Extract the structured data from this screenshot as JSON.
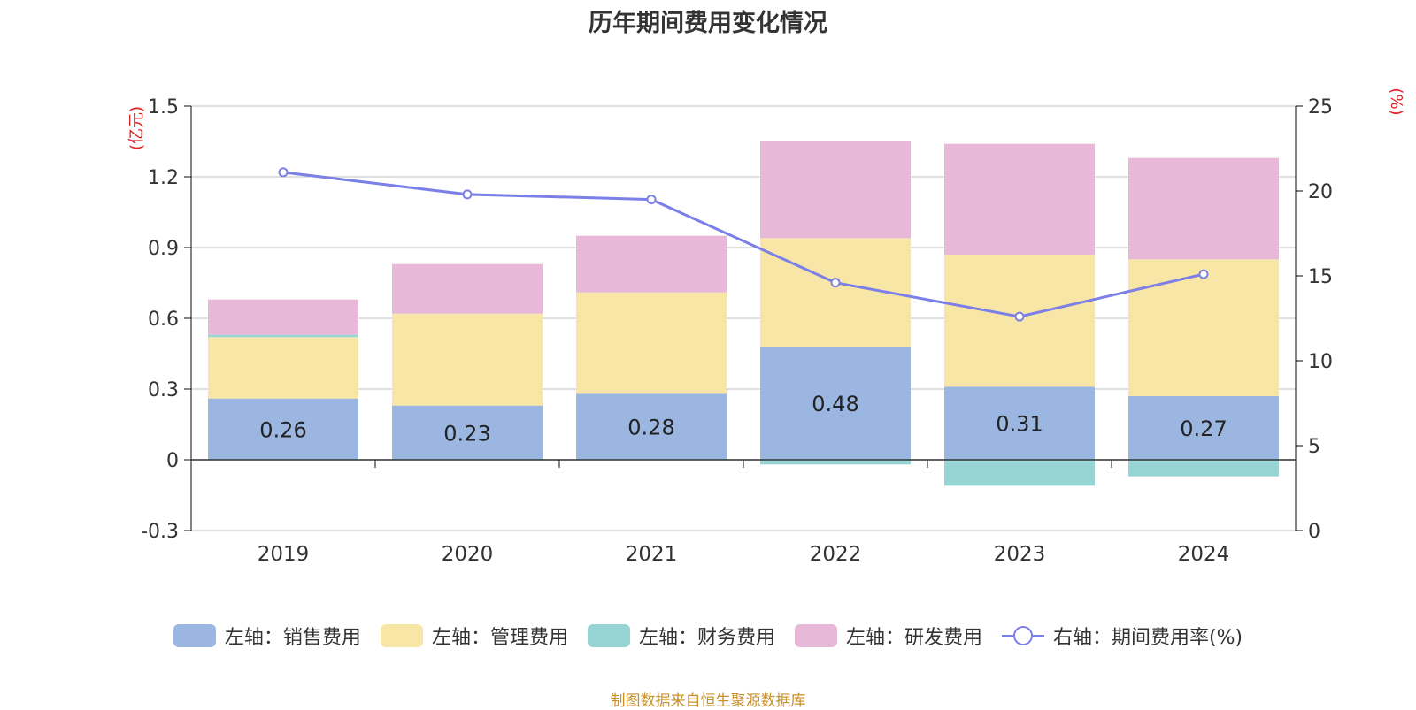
{
  "chart_data": {
    "type": "bar",
    "title": "历年期间费用变化情况",
    "categories": [
      "2019",
      "2020",
      "2021",
      "2022",
      "2023",
      "2024"
    ],
    "left_axis": {
      "unit_label": "(亿元)",
      "min": -0.3,
      "max": 1.5,
      "ticks": [
        "-0.3",
        "0",
        "0.3",
        "0.6",
        "0.9",
        "1.2",
        "1.5"
      ]
    },
    "right_axis": {
      "unit_label": "(%)",
      "min": 0,
      "max": 25,
      "ticks": [
        "0",
        "5",
        "10",
        "15",
        "20",
        "25"
      ]
    },
    "series": [
      {
        "name": "左轴：销售费用",
        "type": "bar",
        "color": "#9bb6e0",
        "values": [
          0.26,
          0.23,
          0.28,
          0.48,
          0.31,
          0.27
        ],
        "labels": [
          "0.26",
          "0.23",
          "0.28",
          "0.48",
          "0.31",
          "0.27"
        ]
      },
      {
        "name": "左轴：管理费用",
        "type": "bar",
        "color": "#f8e6a6",
        "values": [
          0.26,
          0.39,
          0.43,
          0.46,
          0.56,
          0.58
        ]
      },
      {
        "name": "左轴：财务费用",
        "type": "bar",
        "color": "#96d5d4",
        "values": [
          0.01,
          0.0,
          0.0,
          -0.02,
          -0.11,
          -0.07
        ]
      },
      {
        "name": "左轴：研发费用",
        "type": "bar",
        "color": "#e8b8d8",
        "values": [
          0.15,
          0.21,
          0.24,
          0.41,
          0.47,
          0.43
        ]
      },
      {
        "name": "右轴：期间费用率(%)",
        "type": "line",
        "color": "#7b7fe8",
        "values": [
          21.1,
          19.8,
          19.5,
          14.6,
          12.6,
          15.1
        ]
      }
    ],
    "grid": true,
    "legend_position": "bottom"
  },
  "footer": "制图数据来自恒生聚源数据库"
}
